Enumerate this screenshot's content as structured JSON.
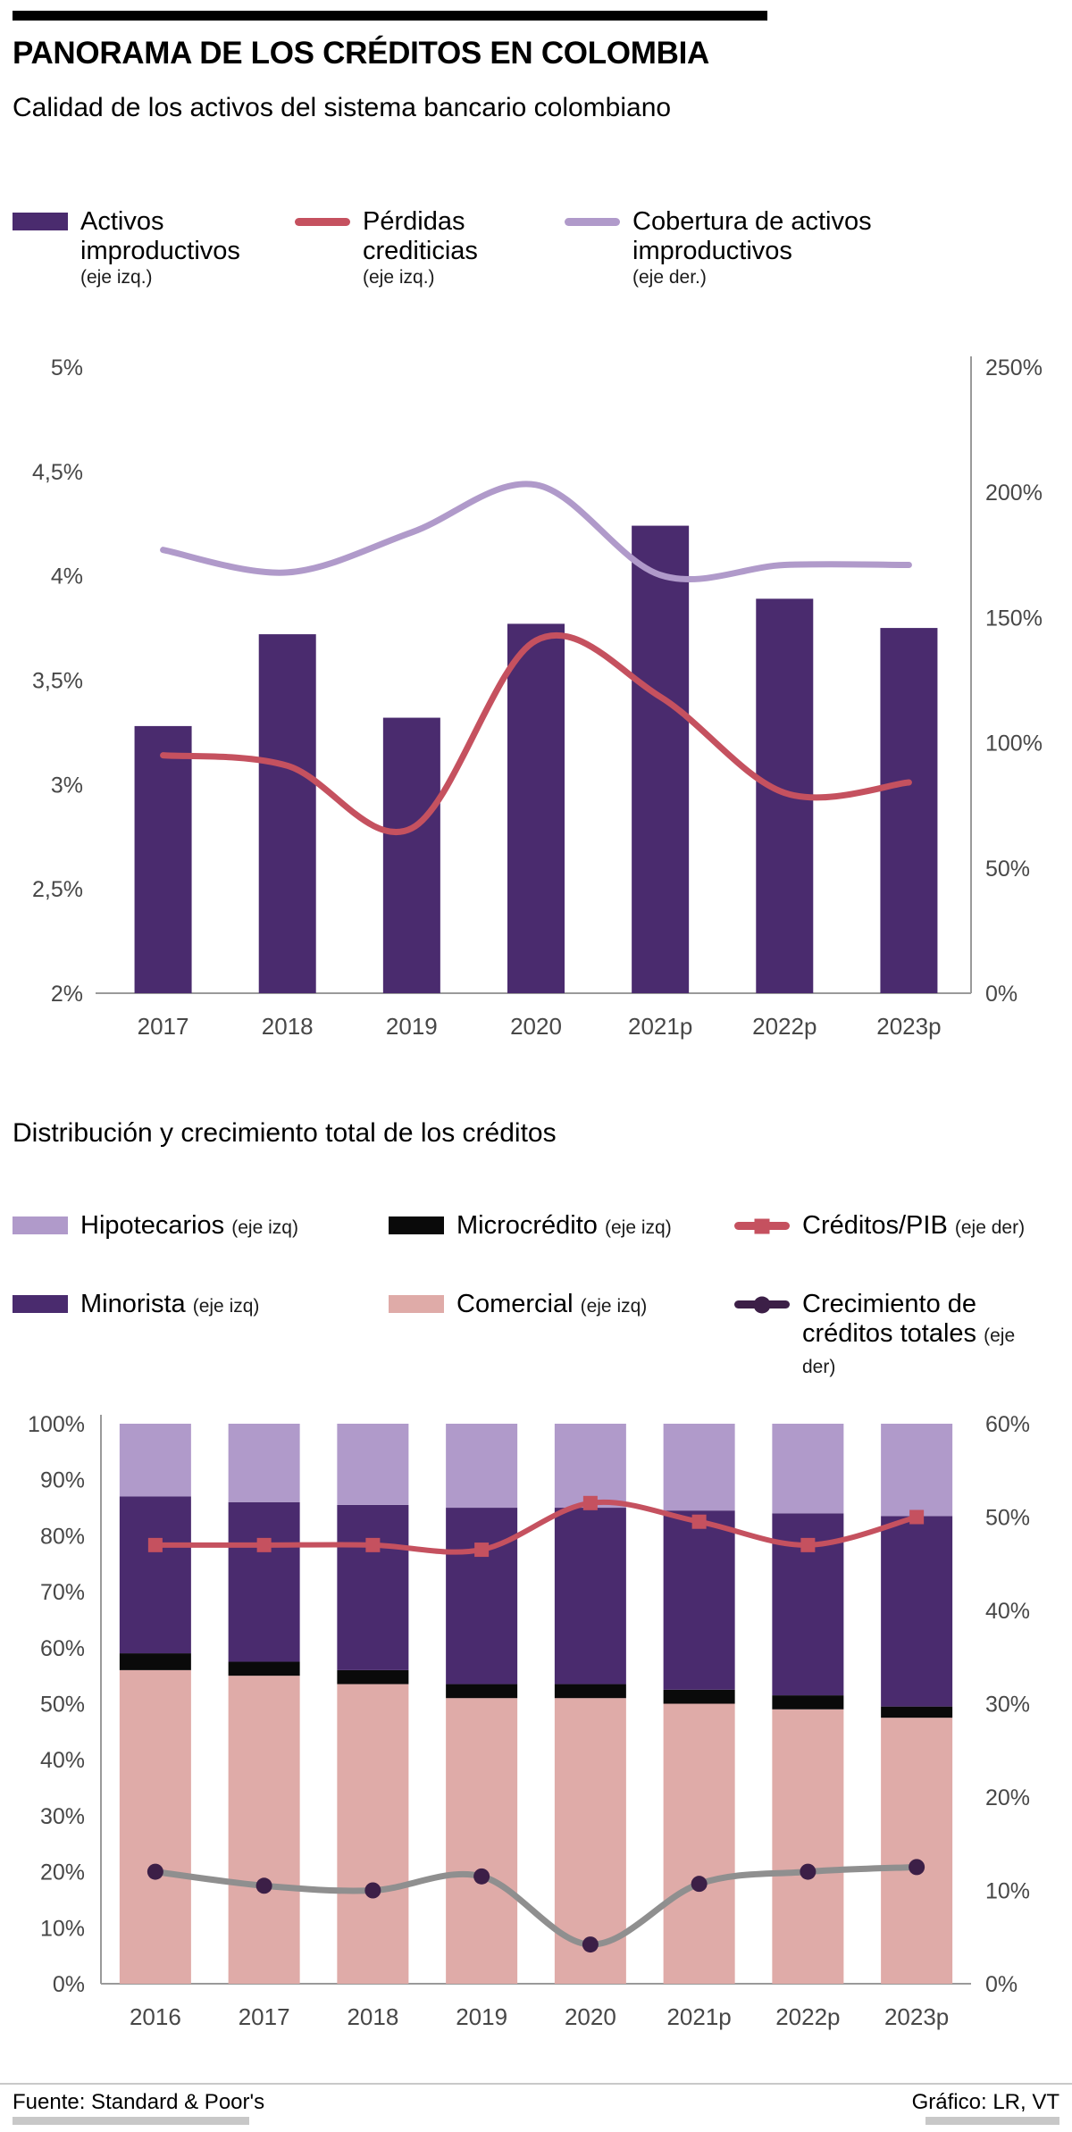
{
  "header": {
    "title": "PANORAMA DE LOS CRÉDITOS EN COLOMBIA",
    "subtitle": "Calidad de los activos del sistema bancario colombiano"
  },
  "section2": {
    "title": "Distribución y crecimiento total de los créditos"
  },
  "footer": {
    "source": "Fuente: Standard & Poor's",
    "credit": "Gráfico: LR, VT"
  },
  "colors": {
    "dark_purple": "#4a2b6e",
    "light_purple": "#b09aca",
    "red": "#c5515f",
    "pink": "#dfaba8",
    "black": "#0a0a0a",
    "gray_line": "#8f8f8f",
    "dark_marker": "#3c1f47",
    "axis_text": "#474747",
    "axis_line": "#9a9a9a"
  },
  "chart_data": [
    {
      "type": "bar",
      "subtype": "combo-bar-line-dual-axis",
      "categories": [
        "2017",
        "2018",
        "2019",
        "2020",
        "2021p",
        "2022p",
        "2023p"
      ],
      "left_axis": {
        "min": 2,
        "max": 5,
        "ticks": [
          "2%",
          "2,5%",
          "3%",
          "3,5%",
          "4%",
          "4,5%",
          "5%"
        ]
      },
      "right_axis": {
        "min": 0,
        "max": 250,
        "ticks": [
          "0%",
          "50%",
          "100%",
          "150%",
          "200%",
          "250%"
        ]
      },
      "bars": {
        "name": "Activos improductivos",
        "axis": "left",
        "color_key": "dark_purple",
        "values": [
          3.28,
          3.72,
          3.32,
          3.77,
          4.24,
          3.89,
          3.75
        ]
      },
      "lines": [
        {
          "name": "Pérdidas crediticias",
          "axis": "left",
          "color_key": "red",
          "values": [
            3.14,
            3.09,
            2.79,
            3.69,
            3.42,
            2.96,
            3.01
          ]
        },
        {
          "name": "Cobertura de activos improductivos",
          "axis": "right",
          "color_key": "light_purple",
          "values": [
            177,
            168,
            184,
            203,
            167,
            171,
            171
          ]
        }
      ],
      "legend": [
        {
          "label": "Activos improductivos",
          "axis_note": "(eje izq.)",
          "swatch": "bar",
          "color_key": "dark_purple"
        },
        {
          "label": "Pérdidas crediticias",
          "axis_note": "(eje izq.)",
          "swatch": "line",
          "color_key": "red"
        },
        {
          "label": "Cobertura de activos improductivos",
          "axis_note": "(eje der.)",
          "swatch": "line",
          "color_key": "light_purple"
        }
      ]
    },
    {
      "type": "bar",
      "subtype": "stacked-100-with-lines-dual-axis",
      "categories": [
        "2016",
        "2017",
        "2018",
        "2019",
        "2020",
        "2021p",
        "2022p",
        "2023p"
      ],
      "left_axis": {
        "min": 0,
        "max": 100,
        "ticks": [
          "0%",
          "10%",
          "20%",
          "30%",
          "40%",
          "50%",
          "60%",
          "70%",
          "80%",
          "90%",
          "100%"
        ]
      },
      "right_axis": {
        "min": 0,
        "max": 60,
        "ticks": [
          "0%",
          "10%",
          "20%",
          "30%",
          "40%",
          "50%",
          "60%"
        ]
      },
      "stack_series": [
        {
          "name": "Comercial",
          "color_key": "pink",
          "values": [
            56,
            55,
            53.5,
            51,
            51,
            50,
            49,
            47.5
          ]
        },
        {
          "name": "Microcrédito",
          "color_key": "black",
          "values": [
            3,
            2.5,
            2.5,
            2.5,
            2.5,
            2.5,
            2.5,
            2
          ]
        },
        {
          "name": "Minorista",
          "color_key": "dark_purple",
          "values": [
            28,
            28.5,
            29.5,
            31.5,
            31.5,
            32,
            32.5,
            34
          ]
        },
        {
          "name": "Hipotecarios",
          "color_key": "light_purple",
          "values": [
            13,
            14,
            14.5,
            15,
            15,
            15.5,
            16,
            16.5
          ]
        }
      ],
      "lines": [
        {
          "name": "Créditos/PIB",
          "axis": "right",
          "color_key": "red",
          "marker": "square",
          "values": [
            47,
            47,
            47,
            46.5,
            51.5,
            49.5,
            47,
            50
          ]
        },
        {
          "name": "Crecimiento de créditos totales",
          "axis": "right",
          "color_key": "gray_line",
          "marker": "circle",
          "marker_color_key": "dark_marker",
          "values": [
            12,
            10.5,
            10,
            11.5,
            4.2,
            10.7,
            12,
            12.5
          ]
        }
      ],
      "legend": [
        {
          "label": "Hipotecarios",
          "axis_note": "(eje izq)",
          "swatch": "bar",
          "color_key": "light_purple"
        },
        {
          "label": "Microcrédito",
          "axis_note": "(eje izq)",
          "swatch": "bar",
          "color_key": "black"
        },
        {
          "label": "Créditos/PIB",
          "axis_note": "(eje der)",
          "swatch": "line-square",
          "color_key": "red"
        },
        {
          "label": "Minorista",
          "axis_note": "(eje izq)",
          "swatch": "bar",
          "color_key": "dark_purple"
        },
        {
          "label": "Comercial",
          "axis_note": "(eje izq)",
          "swatch": "bar",
          "color_key": "pink"
        },
        {
          "label": "Crecimiento de créditos totales",
          "axis_note": "(eje der)",
          "swatch": "line-circle",
          "color_key": "dark_marker"
        }
      ]
    }
  ]
}
